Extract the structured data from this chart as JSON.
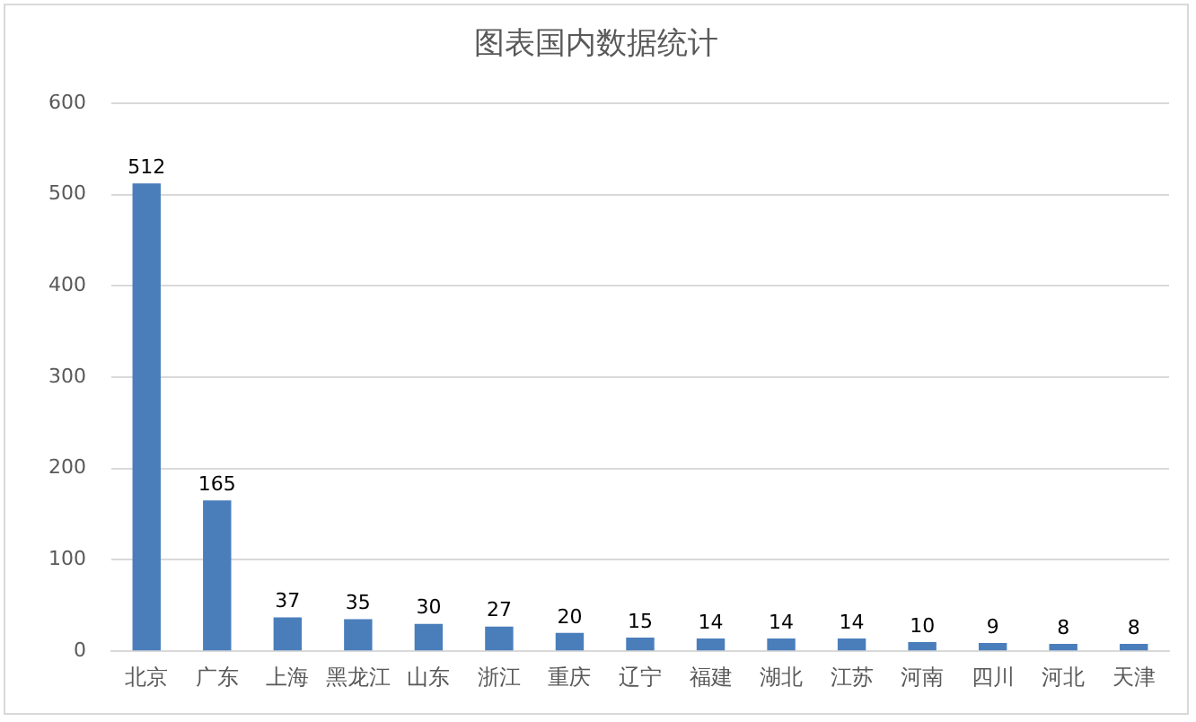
{
  "chart_data": {
    "type": "bar",
    "title": "图表国内数据统计",
    "categories": [
      "北京",
      "广东",
      "上海",
      "黑龙江",
      "山东",
      "浙江",
      "重庆",
      "辽宁",
      "福建",
      "湖北",
      "江苏",
      "河南",
      "四川",
      "河北",
      "天津"
    ],
    "values": [
      512,
      165,
      37,
      35,
      30,
      27,
      20,
      15,
      14,
      14,
      14,
      10,
      9,
      8,
      8
    ],
    "color": "#4a7ebb",
    "ylim": [
      0,
      600
    ],
    "yticks": [
      0,
      100,
      200,
      300,
      400,
      500,
      600
    ],
    "grid": "y",
    "data_labels": true,
    "legend": false
  }
}
